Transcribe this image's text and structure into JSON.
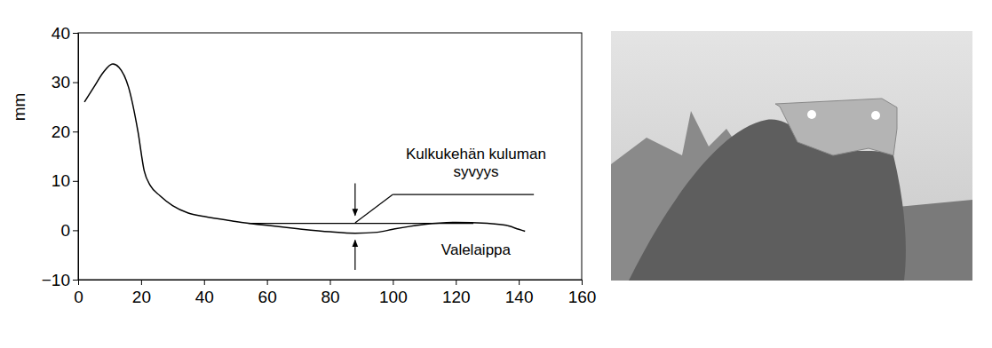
{
  "chart_data": {
    "type": "line",
    "y_label": "mm",
    "x": [
      2,
      5,
      8,
      11,
      13,
      16,
      19,
      21,
      23,
      26,
      30,
      35,
      40,
      50,
      60,
      70,
      80,
      88,
      95,
      100,
      110,
      120,
      130,
      136,
      140,
      142
    ],
    "values": [
      26,
      29,
      32,
      33.7,
      33,
      29,
      20,
      12,
      9,
      7,
      5,
      3.5,
      2.8,
      1.8,
      1,
      0.3,
      -0.3,
      -0.6,
      -0.4,
      0.2,
      1.2,
      1.6,
      1.4,
      1,
      0.2,
      -0.2
    ],
    "color": "#000000",
    "xlim": [
      0,
      160
    ],
    "xticks": [
      0,
      20,
      40,
      60,
      80,
      100,
      120,
      140,
      160
    ],
    "ylim": [
      -10,
      40
    ],
    "yticks": [
      {
        "value": -10,
        "label": "−10"
      },
      0,
      10,
      20,
      30,
      40
    ],
    "grid": false,
    "annotations": [
      {
        "text": "Kulkukehän kuluman\nsyvyys"
      },
      {
        "text": "Valelaippa"
      }
    ]
  }
}
